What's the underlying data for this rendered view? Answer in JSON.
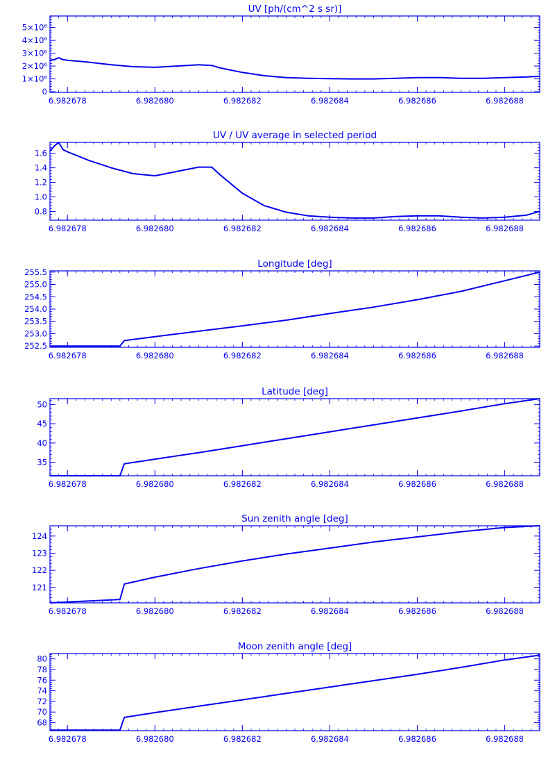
{
  "theme": {
    "line_color": "#0000ee",
    "background": "#ffffff"
  },
  "shared_x": {
    "domain": [
      6.9826776,
      6.9826888
    ],
    "tick_labels": [
      "6.982678",
      "6.982680",
      "6.982682",
      "6.982684",
      "6.982686",
      "6.982688"
    ]
  },
  "chart_data": [
    {
      "type": "line",
      "title": "UV [ph/(cm^2 s sr)]",
      "xlim": [
        6.9826776,
        6.9826888
      ],
      "ylim": [
        -50000,
        5900000
      ],
      "yticks": [
        {
          "value": 0,
          "label": "0"
        },
        {
          "value": 1000000,
          "label": "1×10⁶"
        },
        {
          "value": 2000000,
          "label": "2×10⁶"
        },
        {
          "value": 3000000,
          "label": "3×10⁶"
        },
        {
          "value": 4000000,
          "label": "4×10⁶"
        },
        {
          "value": 5000000,
          "label": "5×10⁶"
        }
      ],
      "series": [
        {
          "x": [
            6.9826776,
            6.9826777,
            6.9826778,
            6.9826779,
            6.982678,
            6.9826785,
            6.982679,
            6.9826795,
            6.98268,
            6.9826805,
            6.982681,
            6.9826813,
            6.9826815,
            6.982682,
            6.9826825,
            6.982683,
            6.9826835,
            6.982684,
            6.9826845,
            6.982685,
            6.9826855,
            6.982686,
            6.9826865,
            6.982687,
            6.9826875,
            6.982688,
            6.9826885,
            6.9826888
          ],
          "y": [
            2450000,
            2500000,
            2650000,
            2500000,
            2450000,
            2300000,
            2100000,
            1950000,
            1900000,
            2000000,
            2100000,
            2050000,
            1850000,
            1500000,
            1250000,
            1100000,
            1050000,
            1020000,
            1000000,
            1000000,
            1050000,
            1100000,
            1100000,
            1050000,
            1050000,
            1100000,
            1150000,
            1200000
          ]
        }
      ]
    },
    {
      "type": "line",
      "title": "UV / UV average in selected period",
      "xlim": [
        6.9826776,
        6.9826888
      ],
      "ylim": [
        0.68,
        1.75
      ],
      "yticks": [
        {
          "value": 0.8,
          "label": "0.8"
        },
        {
          "value": 1.0,
          "label": "1.0"
        },
        {
          "value": 1.2,
          "label": "1.2"
        },
        {
          "value": 1.4,
          "label": "1.4"
        },
        {
          "value": 1.6,
          "label": "1.6"
        }
      ],
      "series": [
        {
          "x": [
            6.9826776,
            6.9826777,
            6.9826778,
            6.9826779,
            6.982678,
            6.9826785,
            6.982679,
            6.9826795,
            6.98268,
            6.9826805,
            6.982681,
            6.9826813,
            6.9826815,
            6.982682,
            6.9826825,
            6.982683,
            6.9826835,
            6.982684,
            6.9826845,
            6.982685,
            6.9826855,
            6.982686,
            6.9826865,
            6.982687,
            6.9826875,
            6.982688,
            6.9826885,
            6.9826888
          ],
          "y": [
            1.63,
            1.7,
            1.75,
            1.65,
            1.62,
            1.5,
            1.4,
            1.32,
            1.29,
            1.35,
            1.41,
            1.41,
            1.3,
            1.05,
            0.88,
            0.79,
            0.74,
            0.72,
            0.71,
            0.71,
            0.73,
            0.74,
            0.74,
            0.72,
            0.71,
            0.72,
            0.75,
            0.8
          ]
        }
      ]
    },
    {
      "type": "line",
      "title": "Longitude [deg]",
      "xlim": [
        6.9826776,
        6.9826888
      ],
      "ylim": [
        252.45,
        255.55
      ],
      "yticks": [
        {
          "value": 252.5,
          "label": "252.5"
        },
        {
          "value": 253.0,
          "label": "253.0"
        },
        {
          "value": 253.5,
          "label": "253.5"
        },
        {
          "value": 254.0,
          "label": "254.0"
        },
        {
          "value": 254.5,
          "label": "254.5"
        },
        {
          "value": 255.0,
          "label": "255.0"
        },
        {
          "value": 255.5,
          "label": "255.5"
        }
      ],
      "series": [
        {
          "x": [
            6.9826776,
            6.9826792,
            6.9826793,
            6.98268,
            6.982681,
            6.982682,
            6.982683,
            6.982684,
            6.982685,
            6.982686,
            6.982687,
            6.982688,
            6.9826888
          ],
          "y": [
            252.5,
            252.5,
            252.72,
            252.88,
            253.1,
            253.32,
            253.55,
            253.82,
            254.08,
            254.38,
            254.72,
            255.15,
            255.5
          ]
        }
      ]
    },
    {
      "type": "line",
      "title": "Latitude [deg]",
      "xlim": [
        6.9826776,
        6.9826888
      ],
      "ylim": [
        31.5,
        51.5
      ],
      "yticks": [
        {
          "value": 35,
          "label": "35"
        },
        {
          "value": 40,
          "label": "40"
        },
        {
          "value": 45,
          "label": "45"
        },
        {
          "value": 50,
          "label": "50"
        }
      ],
      "series": [
        {
          "x": [
            6.9826776,
            6.9826792,
            6.9826793,
            6.98268,
            6.982681,
            6.982682,
            6.982683,
            6.982684,
            6.982685,
            6.982686,
            6.982687,
            6.982688,
            6.9826888
          ],
          "y": [
            31.5,
            31.5,
            34.6,
            35.8,
            37.5,
            39.3,
            41.1,
            42.9,
            44.7,
            46.5,
            48.3,
            50.2,
            51.5
          ]
        }
      ]
    },
    {
      "type": "line",
      "title": "Sun zenith angle [deg]",
      "xlim": [
        6.9826776,
        6.9826888
      ],
      "ylim": [
        120.1,
        124.6
      ],
      "yticks": [
        {
          "value": 121,
          "label": "121"
        },
        {
          "value": 122,
          "label": "122"
        },
        {
          "value": 123,
          "label": "123"
        },
        {
          "value": 124,
          "label": "124"
        }
      ],
      "series": [
        {
          "x": [
            6.9826776,
            6.9826792,
            6.9826793,
            6.98268,
            6.982681,
            6.982682,
            6.982683,
            6.982684,
            6.982685,
            6.982686,
            6.982687,
            6.982688,
            6.9826888
          ],
          "y": [
            120.1,
            120.3,
            121.2,
            121.6,
            122.1,
            122.55,
            122.95,
            123.3,
            123.65,
            123.95,
            124.25,
            124.5,
            124.6
          ]
        }
      ]
    },
    {
      "type": "line",
      "title": "Moon zenith angle [deg]",
      "xlim": [
        6.9826776,
        6.9826888
      ],
      "ylim": [
        66.5,
        81
      ],
      "yticks": [
        {
          "value": 68,
          "label": "68"
        },
        {
          "value": 70,
          "label": "70"
        },
        {
          "value": 72,
          "label": "72"
        },
        {
          "value": 74,
          "label": "74"
        },
        {
          "value": 76,
          "label": "76"
        },
        {
          "value": 78,
          "label": "78"
        },
        {
          "value": 80,
          "label": "80"
        }
      ],
      "series": [
        {
          "x": [
            6.9826776,
            6.9826792,
            6.9826793,
            6.98268,
            6.982681,
            6.982682,
            6.982683,
            6.982684,
            6.982685,
            6.982686,
            6.982687,
            6.982688,
            6.9826888
          ],
          "y": [
            66.6,
            66.6,
            69.0,
            69.9,
            71.1,
            72.3,
            73.5,
            74.7,
            75.9,
            77.1,
            78.4,
            79.8,
            80.7
          ]
        }
      ]
    }
  ]
}
